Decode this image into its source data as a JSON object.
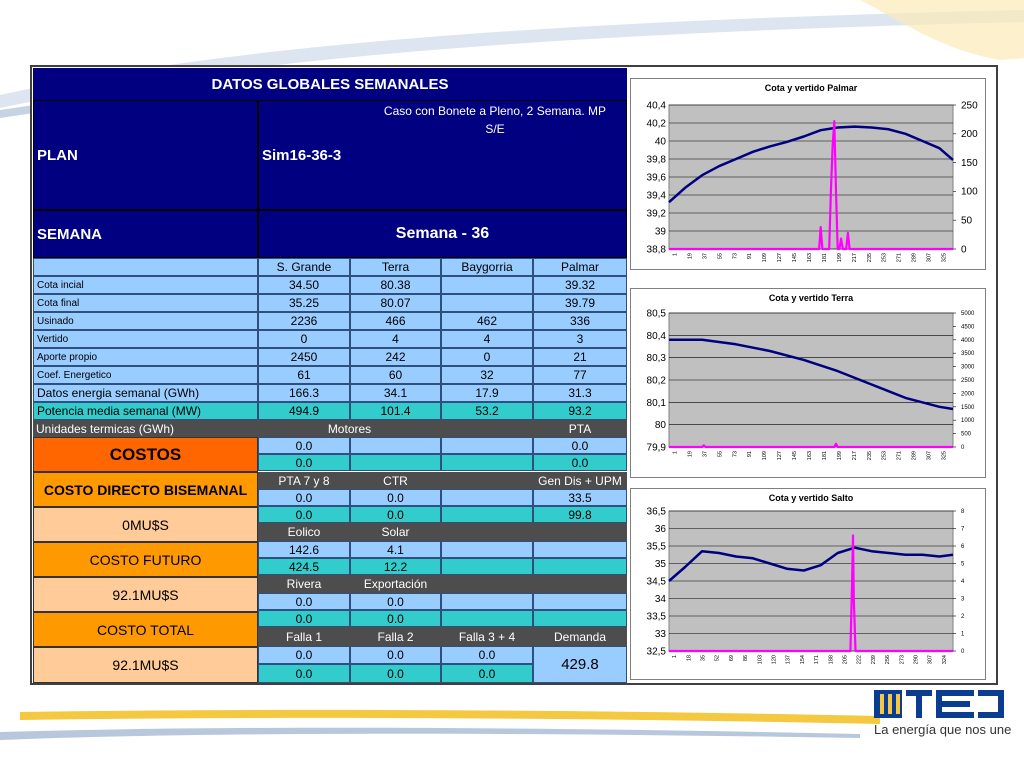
{
  "header": {
    "title": "DATOS GLOBALES SEMANALES",
    "plan_label": "PLAN",
    "plan_value": "Sim16-36-3",
    "plan_desc_1": "Caso con Bonete a Pleno, 2 Semana. MP",
    "plan_desc_2": "S/E",
    "semana_label": "SEMANA",
    "semana_value": "Semana - 36"
  },
  "table": {
    "columns": [
      "S. Grande",
      "Terra",
      "Baygorria",
      "Palmar"
    ],
    "rows": [
      {
        "label": "Cota incial",
        "values": [
          "34.50",
          "80.38",
          "",
          "39.32"
        ]
      },
      {
        "label": "Cota final",
        "values": [
          "35.25",
          "80.07",
          "",
          "39.79"
        ]
      },
      {
        "label": "Usinado",
        "values": [
          "2236",
          "466",
          "462",
          "336"
        ]
      },
      {
        "label": "Vertido",
        "values": [
          "0",
          "4",
          "4",
          "3"
        ]
      },
      {
        "label": "Aporte propio",
        "values": [
          "2450",
          "242",
          "0",
          "21"
        ]
      },
      {
        "label": "Coef. Energetico",
        "values": [
          "61",
          "60",
          "32",
          "77"
        ]
      },
      {
        "label": "Datos energia semanal  (GWh)",
        "values": [
          "166.3",
          "34.1",
          "17.9",
          "31.3"
        ]
      },
      {
        "label": "Potencia media semanal (MW)",
        "values": [
          "494.9",
          "101.4",
          "53.2",
          "93.2"
        ]
      }
    ]
  },
  "costs": {
    "unidades_label": "Unidades termicas (GWh)",
    "costos_label": "COSTOS",
    "costo_directo_label": "COSTO DIRECTO BISEMANAL",
    "costo_directo_value": "0MU$S",
    "costo_futuro_label": "COSTO FUTURO",
    "costo_futuro_value": "92.1MU$S",
    "costo_total_label": "COSTO TOTAL",
    "costo_total_value": "92.1MU$S"
  },
  "thermal": {
    "motores_label": "Motores",
    "pta_label": "PTA",
    "motores_vals": [
      "0.0",
      "0.0"
    ],
    "pta_vals": [
      "0.0",
      "0.0"
    ],
    "pta78_label": "PTA 7 y 8",
    "ctr_label": "CTR",
    "gendis_label": "Gen Dis + UPM",
    "pta78_vals": [
      "0.0",
      "0.0"
    ],
    "ctr_vals": [
      "0.0",
      "0.0"
    ],
    "gendis_vals": [
      "33.5",
      "99.8"
    ],
    "eolico_label": "Eolico",
    "solar_label": "Solar",
    "eolico_vals": [
      "142.6",
      "424.5"
    ],
    "solar_vals": [
      "4.1",
      "12.2"
    ],
    "rivera_label": "Rivera",
    "export_label": "Exportación",
    "rivera_vals": [
      "0.0",
      "0.0"
    ],
    "export_vals": [
      "0.0",
      "0.0"
    ],
    "falla1_label": "Falla 1",
    "falla2_label": "Falla 2",
    "falla34_label": "Falla 3 + 4",
    "demanda_label": "Demanda",
    "falla1_vals": [
      "0.0",
      "0.0"
    ],
    "falla2_vals": [
      "0.0",
      "0.0"
    ],
    "falla34_vals": [
      "0.0",
      "0.0"
    ],
    "demanda_value": "429.8"
  },
  "brand": {
    "tagline": "La energía que nos une"
  },
  "colors": {
    "navy": "#000080",
    "light_blue": "#99ccff",
    "teal": "#33cccc",
    "orange": "#ff6600",
    "amber": "#ff9900",
    "peach": "#ffcc99",
    "cota_line": "#000080",
    "vertido_line": "#ff00ff"
  },
  "chart_data": [
    {
      "type": "line",
      "title": "Cota y vertido  Palmar",
      "ylim_left": [
        38.8,
        40.4
      ],
      "ylim_right": [
        0,
        250
      ],
      "left_ticks": [
        "40,4",
        "40,2",
        "40",
        "39,8",
        "39,6",
        "39,4",
        "39,2",
        "39",
        "38,8"
      ],
      "right_ticks": [
        "250",
        "200",
        "150",
        "100",
        "50",
        "0"
      ],
      "x_ticks": [
        "1",
        "19",
        "37",
        "55",
        "73",
        "91",
        "109",
        "127",
        "145",
        "163",
        "181",
        "199",
        "217",
        "235",
        "253",
        "271",
        "289",
        "307",
        "325"
      ],
      "x_range": [
        1,
        336
      ],
      "series": [
        {
          "axis": "left",
          "x": [
            1,
            20,
            40,
            60,
            80,
            100,
            120,
            140,
            160,
            180,
            200,
            220,
            240,
            260,
            280,
            300,
            320,
            336
          ],
          "values": [
            39.32,
            39.48,
            39.62,
            39.72,
            39.8,
            39.88,
            39.94,
            39.99,
            40.05,
            40.12,
            40.15,
            40.16,
            40.15,
            40.13,
            40.08,
            40.0,
            39.92,
            39.79
          ]
        },
        {
          "axis": "right",
          "x": [
            1,
            178,
            180,
            182,
            184,
            190,
            192,
            194,
            196,
            198,
            200,
            202,
            204,
            206,
            210,
            212,
            214,
            216,
            220,
            336
          ],
          "values": [
            0,
            0,
            38,
            0,
            0,
            0,
            100,
            178,
            222,
            100,
            0,
            0,
            18,
            0,
            0,
            28,
            0,
            0,
            0,
            0
          ]
        }
      ]
    },
    {
      "type": "line",
      "title": "Cota y vertido  Terra",
      "ylim_left": [
        79.9,
        80.5
      ],
      "ylim_right": [
        0,
        5000
      ],
      "left_ticks": [
        "80,5",
        "80,4",
        "80,3",
        "80,2",
        "80,1",
        "80",
        "79,9"
      ],
      "right_ticks": [
        "5000",
        "4500",
        "4000",
        "3500",
        "3000",
        "2500",
        "2000",
        "1500",
        "1000",
        "500",
        "0"
      ],
      "x_ticks": [
        "1",
        "19",
        "37",
        "55",
        "73",
        "91",
        "109",
        "127",
        "145",
        "163",
        "181",
        "199",
        "217",
        "235",
        "253",
        "271",
        "289",
        "307",
        "325"
      ],
      "x_range": [
        1,
        336
      ],
      "series": [
        {
          "axis": "left",
          "x": [
            1,
            40,
            80,
            120,
            160,
            200,
            240,
            280,
            320,
            336
          ],
          "values": [
            80.38,
            80.38,
            80.36,
            80.33,
            80.29,
            80.24,
            80.18,
            80.12,
            80.08,
            80.07
          ]
        },
        {
          "axis": "right",
          "x": [
            1,
            40,
            42,
            44,
            196,
            198,
            200,
            336
          ],
          "values": [
            0,
            0,
            60,
            0,
            0,
            120,
            0,
            0
          ]
        }
      ]
    },
    {
      "type": "line",
      "title": "Cota y vertido Salto",
      "ylim_left": [
        32.5,
        36.5
      ],
      "ylim_right": [
        0,
        8
      ],
      "left_ticks": [
        "36,5",
        "36",
        "35,5",
        "35",
        "34,5",
        "34",
        "33,5",
        "33",
        "32,5"
      ],
      "right_ticks": [
        "8",
        "7",
        "6",
        "5",
        "4",
        "3",
        "2",
        "1",
        "0"
      ],
      "x_ticks": [
        "1",
        "18",
        "35",
        "52",
        "69",
        "86",
        "103",
        "120",
        "137",
        "154",
        "171",
        "188",
        "205",
        "222",
        "239",
        "256",
        "273",
        "290",
        "307",
        "324"
      ],
      "x_range": [
        1,
        336
      ],
      "series": [
        {
          "axis": "left",
          "x": [
            1,
            20,
            40,
            60,
            80,
            100,
            120,
            140,
            160,
            180,
            200,
            220,
            240,
            260,
            280,
            300,
            320,
            336
          ],
          "values": [
            34.5,
            34.9,
            35.35,
            35.3,
            35.2,
            35.15,
            35.0,
            34.85,
            34.8,
            34.95,
            35.3,
            35.45,
            35.35,
            35.3,
            35.25,
            35.25,
            35.2,
            35.25
          ]
        },
        {
          "axis": "right",
          "x": [
            1,
            215,
            217,
            218,
            219,
            221,
            336
          ],
          "values": [
            0,
            0,
            4,
            6.6,
            3,
            0,
            0
          ]
        }
      ]
    }
  ]
}
